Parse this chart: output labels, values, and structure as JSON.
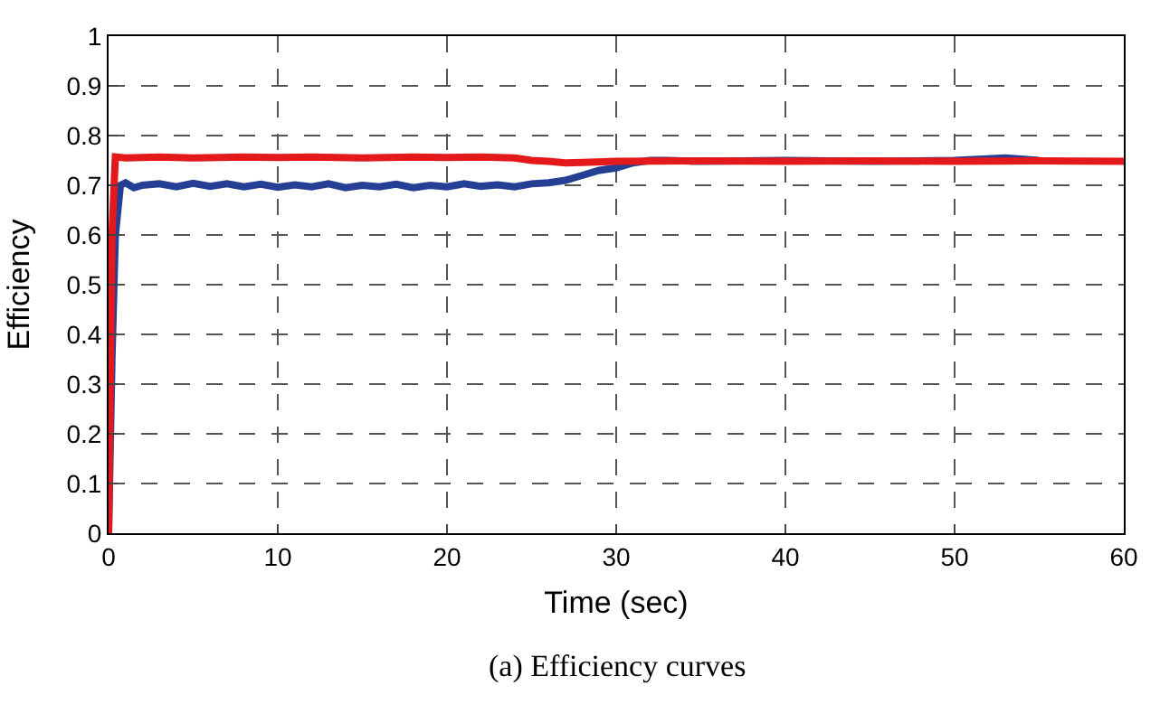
{
  "chart_data": {
    "type": "line",
    "xlabel": "Time (sec)",
    "ylabel": "Efficiency",
    "annotations": [
      "(a) Efficiency curves"
    ],
    "xlim": [
      0,
      60
    ],
    "ylim": [
      0,
      1
    ],
    "xticks": [
      0,
      10,
      20,
      30,
      40,
      50,
      60
    ],
    "yticks": [
      0,
      0.1,
      0.2,
      0.3,
      0.4,
      0.5,
      0.6,
      0.7,
      0.8,
      0.9,
      1
    ],
    "grid": true,
    "series": [
      {
        "color": "#253f94",
        "x": [
          0,
          0.2,
          0.4,
          0.7,
          1,
          1.5,
          2,
          3,
          4,
          5,
          6,
          7,
          8,
          9,
          10,
          11,
          12,
          13,
          14,
          15,
          16,
          17,
          18,
          19,
          20,
          21,
          22,
          23,
          24,
          25,
          26,
          27,
          28,
          29,
          30,
          31,
          32,
          33,
          35,
          40,
          45,
          50,
          53,
          55
        ],
        "values": [
          0,
          0.35,
          0.6,
          0.7,
          0.705,
          0.695,
          0.7,
          0.703,
          0.697,
          0.704,
          0.698,
          0.703,
          0.697,
          0.702,
          0.696,
          0.701,
          0.697,
          0.703,
          0.695,
          0.7,
          0.697,
          0.702,
          0.695,
          0.7,
          0.697,
          0.703,
          0.698,
          0.701,
          0.697,
          0.703,
          0.705,
          0.71,
          0.72,
          0.73,
          0.735,
          0.745,
          0.75,
          0.75,
          0.748,
          0.75,
          0.748,
          0.75,
          0.755,
          0.75
        ]
      },
      {
        "color": "#e3191c",
        "x": [
          0,
          0.2,
          0.4,
          1,
          3,
          5,
          8,
          10,
          12,
          15,
          18,
          20,
          22,
          23,
          24,
          25,
          26,
          27,
          28,
          30,
          35,
          40,
          45,
          50,
          55,
          60
        ],
        "values": [
          0,
          0.6,
          0.757,
          0.755,
          0.757,
          0.755,
          0.757,
          0.756,
          0.757,
          0.755,
          0.757,
          0.756,
          0.757,
          0.756,
          0.755,
          0.75,
          0.748,
          0.745,
          0.746,
          0.748,
          0.749,
          0.748,
          0.749,
          0.748,
          0.749,
          0.748
        ]
      }
    ]
  }
}
